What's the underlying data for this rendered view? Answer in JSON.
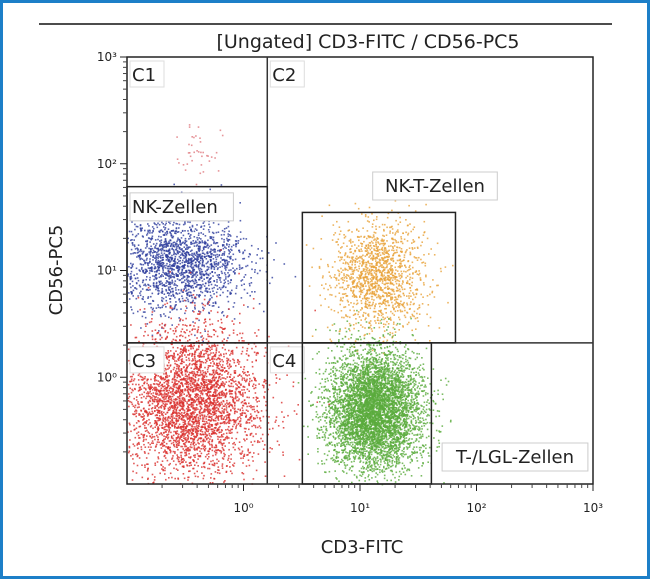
{
  "chart_data": {
    "type": "scatter",
    "title": "[Ungated] CD3-FITC / CD56-PC5",
    "xlabel": "CD3-FITC",
    "ylabel": "CD56-PC5",
    "xscale": "log",
    "yscale": "log",
    "xlim": [
      0.1,
      1000
    ],
    "ylim": [
      0.1,
      1000
    ],
    "xticks": [
      {
        "value": 1,
        "label": "10⁰"
      },
      {
        "value": 10,
        "label": "10¹"
      },
      {
        "value": 100,
        "label": "10²"
      },
      {
        "value": 1000,
        "label": "10³"
      }
    ],
    "yticks": [
      {
        "value": 1,
        "label": "10⁰"
      },
      {
        "value": 10,
        "label": "10¹"
      },
      {
        "value": 100,
        "label": "10²"
      },
      {
        "value": 1000,
        "label": "10³"
      }
    ],
    "quadrant_split": {
      "x": 1.6,
      "y": 2.1
    },
    "quadrant_labels": [
      "C1",
      "C2",
      "C3",
      "C4"
    ],
    "gates": [
      {
        "name": "NK-Zellen",
        "x": [
          0.1,
          1.6
        ],
        "y": [
          2.1,
          61
        ]
      },
      {
        "name": "NK-T-Zellen",
        "x": [
          3.2,
          66
        ],
        "y": [
          2.1,
          35
        ]
      },
      {
        "name": "T-/LGL-Zellen",
        "x": [
          3.2,
          41
        ],
        "y": [
          0.1,
          2.1
        ]
      }
    ],
    "series": [
      {
        "name": "NK-Zellen",
        "color": "#2f3f9e",
        "center": [
          0.28,
          12
        ],
        "spread": [
          0.28,
          0.22
        ],
        "count": 1800
      },
      {
        "name": "NK-T-Zellen",
        "color": "#e8a33a",
        "center": [
          14,
          9
        ],
        "spread": [
          0.2,
          0.25
        ],
        "count": 1400
      },
      {
        "name": "T-/LGL-Zellen",
        "color": "#5aab3c",
        "center": [
          13,
          0.5
        ],
        "spread": [
          0.2,
          0.28
        ],
        "count": 5000
      },
      {
        "name": "C3",
        "color": "#d9312e",
        "center": [
          0.35,
          0.6
        ],
        "spread": [
          0.3,
          0.35
        ],
        "count": 3500
      },
      {
        "name": "C1",
        "color": "#e07a80",
        "center": [
          0.4,
          120
        ],
        "spread": [
          0.12,
          0.12
        ],
        "count": 40
      }
    ]
  }
}
